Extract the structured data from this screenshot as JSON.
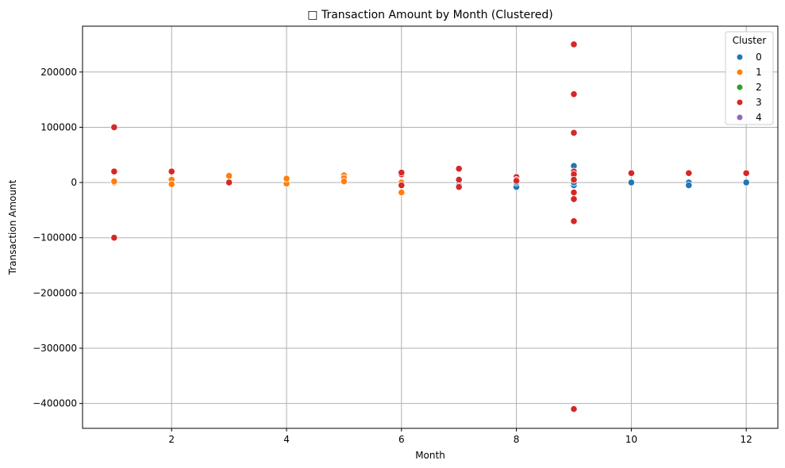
{
  "chart_data": {
    "type": "scatter",
    "title": "□ Transaction Amount by Month (Clustered)",
    "xlabel": "Month",
    "ylabel": "Transaction Amount",
    "xlim": [
      0.45,
      12.55
    ],
    "ylim": [
      -445000,
      283000
    ],
    "x_ticks": [
      2,
      4,
      6,
      8,
      10,
      12
    ],
    "y_ticks": [
      -400000,
      -300000,
      -200000,
      -100000,
      0,
      100000,
      200000
    ],
    "y_tick_labels": [
      "−400000",
      "−300000",
      "−200000",
      "−100000",
      "0",
      "100000",
      "200000"
    ],
    "grid": true,
    "legend_title": "Cluster",
    "legend_position": "top-right",
    "series": [
      {
        "name": "0",
        "color": "#1f77b4",
        "points": [
          [
            7,
            0
          ],
          [
            7,
            -3000
          ],
          [
            7,
            2000
          ],
          [
            8,
            -5000
          ],
          [
            8,
            -8000
          ],
          [
            8,
            0
          ],
          [
            9,
            30000
          ],
          [
            9,
            -5000
          ],
          [
            9,
            0
          ],
          [
            10,
            0
          ],
          [
            11,
            0
          ],
          [
            11,
            -5000
          ],
          [
            12,
            0
          ]
        ]
      },
      {
        "name": "1",
        "color": "#ff7f0e",
        "points": [
          [
            1,
            0
          ],
          [
            1,
            2000
          ],
          [
            2,
            0
          ],
          [
            2,
            5000
          ],
          [
            2,
            -3000
          ],
          [
            3,
            13000
          ],
          [
            3,
            12000
          ],
          [
            4,
            5000
          ],
          [
            4,
            0
          ],
          [
            4,
            -2000
          ],
          [
            4,
            7000
          ],
          [
            5,
            13000
          ],
          [
            5,
            8000
          ],
          [
            5,
            2000
          ],
          [
            6,
            0
          ],
          [
            6,
            -18000
          ],
          [
            6,
            15000
          ],
          [
            6,
            -5000
          ]
        ]
      },
      {
        "name": "2",
        "color": "#2ca02c",
        "points": []
      },
      {
        "name": "3",
        "color": "#d62728",
        "points": [
          [
            1,
            100000
          ],
          [
            1,
            20000
          ],
          [
            1,
            -100000
          ],
          [
            2,
            20000
          ],
          [
            3,
            0
          ],
          [
            6,
            15000
          ],
          [
            6,
            18000
          ],
          [
            6,
            -5000
          ],
          [
            7,
            25000
          ],
          [
            7,
            -8000
          ],
          [
            7,
            5000
          ],
          [
            8,
            10000
          ],
          [
            8,
            5000
          ],
          [
            8,
            3000
          ],
          [
            9,
            250000
          ],
          [
            9,
            160000
          ],
          [
            9,
            90000
          ],
          [
            9,
            20000
          ],
          [
            9,
            15000
          ],
          [
            9,
            5000
          ],
          [
            9,
            -18000
          ],
          [
            9,
            -30000
          ],
          [
            9,
            -70000
          ],
          [
            9,
            -410000
          ],
          [
            10,
            17000
          ],
          [
            11,
            17000
          ],
          [
            12,
            17000
          ]
        ]
      },
      {
        "name": "4",
        "color": "#9467bd",
        "points": []
      }
    ]
  }
}
